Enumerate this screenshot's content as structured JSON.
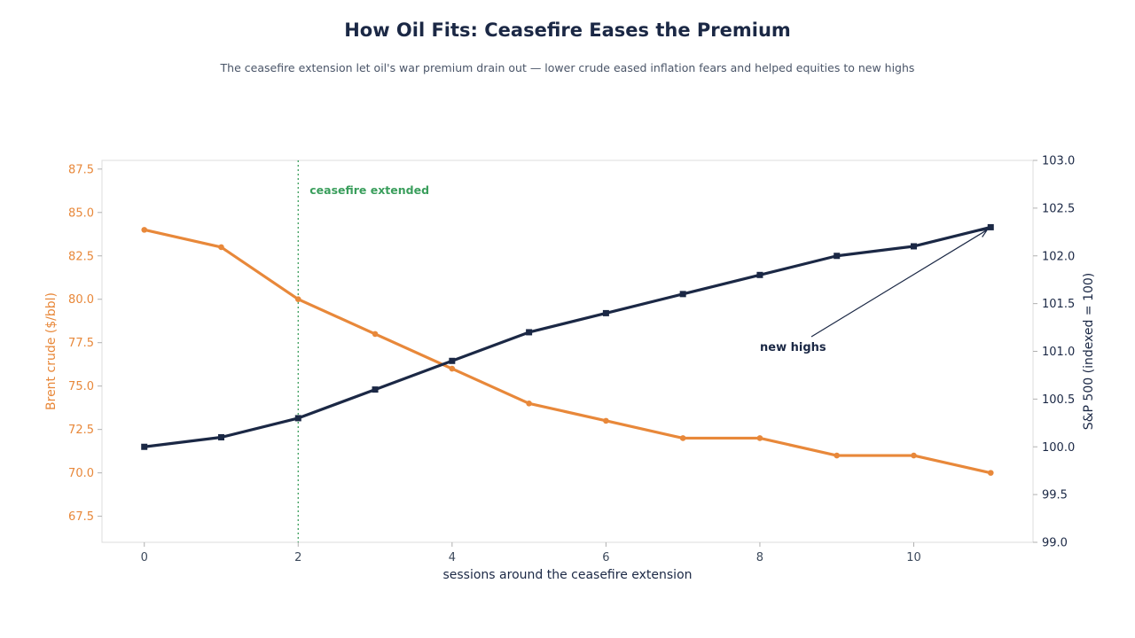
{
  "chart_data": {
    "type": "line",
    "title": "How Oil Fits: Ceasefire Eases the Premium",
    "subtitle": "The ceasefire extension let oil's war premium drain out — lower crude eased inflation fears and helped equities to new highs",
    "xlabel": "sessions around the ceasefire extension",
    "ylabel_left": "Brent crude ($/bbl)",
    "ylabel_right": "S&P 500 (indexed = 100)",
    "x": [
      0,
      1,
      2,
      3,
      4,
      5,
      6,
      7,
      8,
      9,
      10,
      11
    ],
    "xlim": [
      -0.55,
      11.55
    ],
    "x_ticks": [
      0,
      2,
      4,
      6,
      8,
      10
    ],
    "ylim_left": [
      66,
      88
    ],
    "y_ticks_left": [
      67.5,
      70.0,
      72.5,
      75.0,
      77.5,
      80.0,
      82.5,
      85.0,
      87.5
    ],
    "ylim_right": [
      99.0,
      103.0
    ],
    "y_ticks_right": [
      99.0,
      99.5,
      100.0,
      100.5,
      101.0,
      101.5,
      102.0,
      102.5,
      103.0
    ],
    "series": [
      {
        "name": "Brent crude ($/bbl)",
        "axis": "left",
        "color": "#e8883a",
        "marker": "circle",
        "values": [
          84,
          83,
          80,
          78,
          76,
          74,
          73,
          72,
          72,
          71,
          71,
          70
        ]
      },
      {
        "name": "S&P 500 (indexed = 100)",
        "axis": "right",
        "color": "#1b2845",
        "marker": "square",
        "values": [
          100.0,
          100.1,
          100.3,
          100.6,
          100.9,
          101.2,
          101.4,
          101.6,
          101.8,
          102.0,
          102.1,
          102.3
        ]
      }
    ],
    "annotations": [
      {
        "text": "ceasefire extended",
        "x": 2,
        "type": "vline",
        "color": "#3a9e5c"
      },
      {
        "text": "new highs",
        "target_x": 11,
        "target_series": "S&P 500 (indexed = 100)",
        "color": "#1b2845"
      }
    ],
    "grid": false,
    "legend": "none"
  }
}
